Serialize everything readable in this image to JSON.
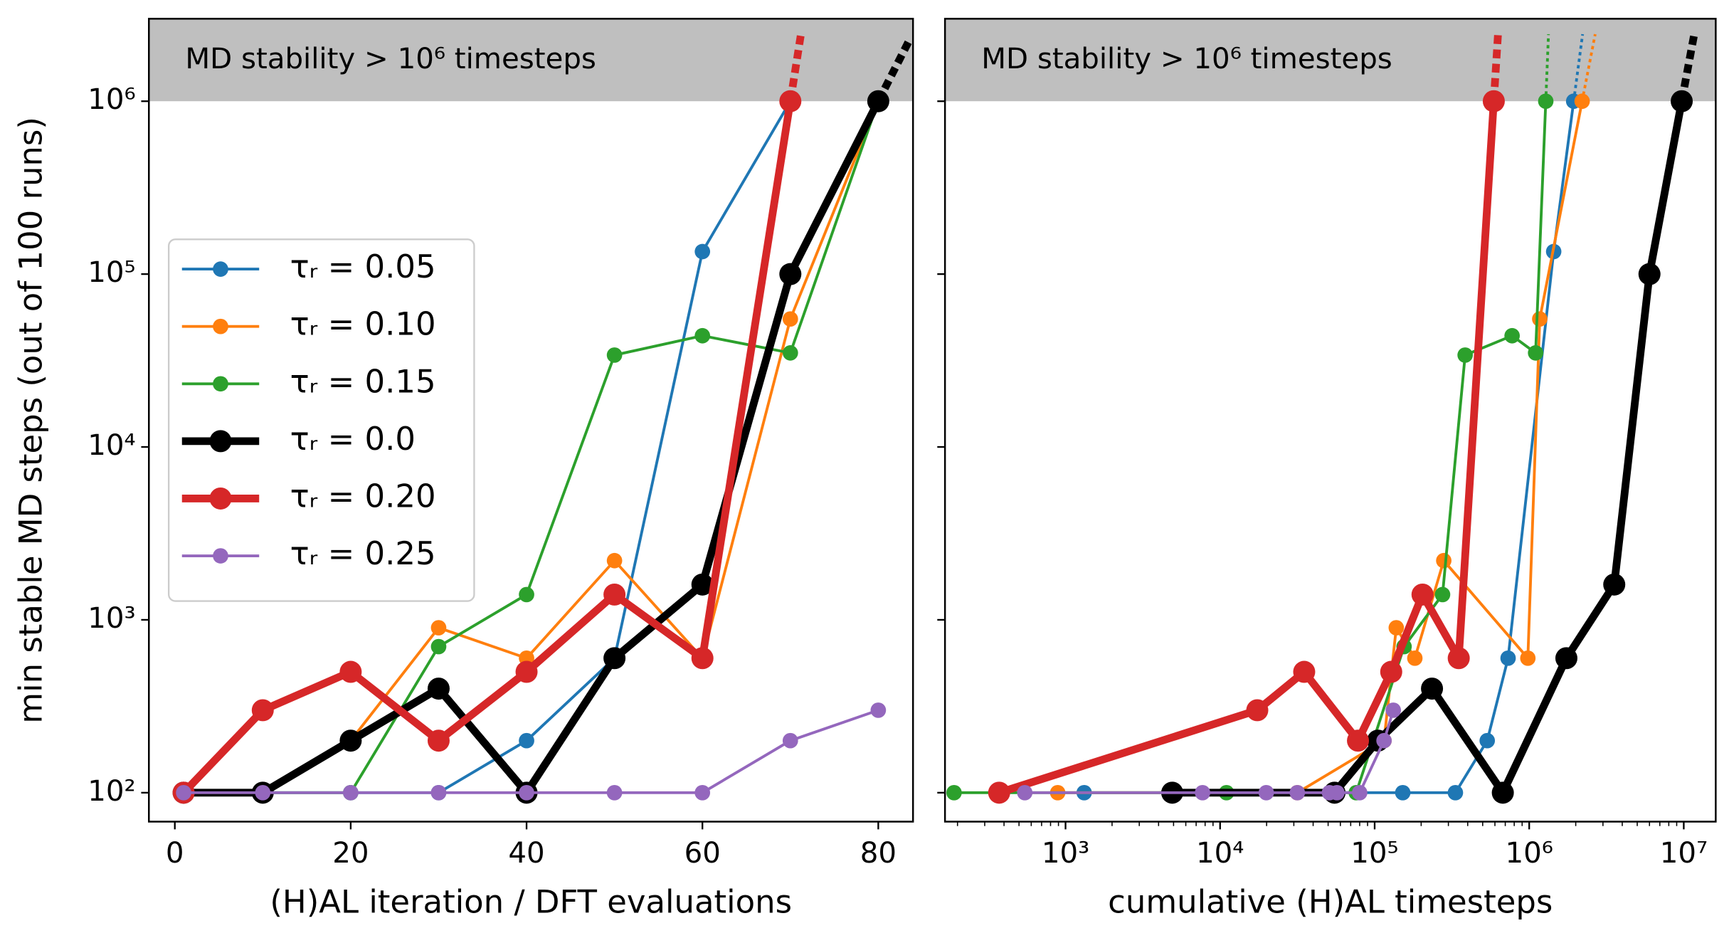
{
  "chart_data": [
    {
      "type": "line",
      "xlabel": "(H)AL iteration / DFT evaluations",
      "ylabel": "min stable MD steps (out of 100 runs)",
      "xlim": [
        -2.95,
        83.95
      ],
      "xticks": [
        0,
        20,
        40,
        60,
        80
      ],
      "ylim": [
        68,
        3000000
      ],
      "yscale": "log",
      "yticks": [
        {
          "value": 100,
          "label": "10²"
        },
        {
          "value": 1000,
          "label": "10³"
        },
        {
          "value": 10000,
          "label": "10⁴"
        },
        {
          "value": 100000,
          "label": "10⁵"
        },
        {
          "value": 1000000,
          "label": "10⁶"
        }
      ],
      "band": {
        "from": 1000000,
        "color": "#bfbfbf"
      },
      "annotation": "MD stability > 10⁶ timesteps",
      "legend": "center left",
      "series": [
        {
          "name": "τᵣ = 0.05",
          "color": "#1f77b4",
          "bold": false,
          "x": [
            1,
            10,
            20,
            30,
            40,
            50,
            60,
            70
          ],
          "values": [
            100,
            100,
            100,
            100,
            200,
            600,
            135000,
            1000000
          ]
        },
        {
          "name": "τᵣ = 0.10",
          "color": "#ff7f0e",
          "bold": false,
          "x": [
            1,
            10,
            20,
            30,
            40,
            50,
            60,
            70,
            80
          ],
          "values": [
            100,
            100,
            200,
            900,
            600,
            2200,
            600,
            55000,
            1000000
          ]
        },
        {
          "name": "τᵣ = 0.15",
          "color": "#2ca02c",
          "bold": false,
          "x": [
            1,
            10,
            20,
            30,
            40,
            50,
            60,
            70,
            80
          ],
          "values": [
            100,
            100,
            100,
            700,
            1400,
            34000,
            44000,
            35000,
            1000000
          ]
        },
        {
          "name": "τᵣ = 0.0",
          "color": "#000000",
          "bold": true,
          "dotted_continuation": true,
          "x": [
            1,
            10,
            20,
            30,
            40,
            50,
            60,
            70,
            80
          ],
          "values": [
            100,
            100,
            200,
            400,
            100,
            600,
            1600,
            100000,
            1000000
          ]
        },
        {
          "name": "τᵣ = 0.20",
          "color": "#d62728",
          "bold": true,
          "dotted_continuation": true,
          "x": [
            1,
            10,
            20,
            30,
            40,
            50,
            60,
            70
          ],
          "values": [
            100,
            300,
            500,
            200,
            500,
            1400,
            600,
            1000000
          ]
        },
        {
          "name": "τᵣ = 0.25",
          "color": "#9467bd",
          "bold": false,
          "x": [
            1,
            10,
            20,
            30,
            40,
            50,
            60,
            70,
            80
          ],
          "values": [
            100,
            100,
            100,
            100,
            100,
            100,
            100,
            200,
            300
          ]
        }
      ]
    },
    {
      "type": "line",
      "xlabel": "cumulative (H)AL timesteps",
      "xlim": [
        166,
        16100000
      ],
      "xscale": "log",
      "xticks": [
        {
          "value": 1000,
          "label": "10³"
        },
        {
          "value": 10000,
          "label": "10⁴"
        },
        {
          "value": 100000,
          "label": "10⁵"
        },
        {
          "value": 1000000,
          "label": "10⁶"
        },
        {
          "value": 10000000,
          "label": "10⁷"
        }
      ],
      "ylim": [
        68,
        3000000
      ],
      "yscale": "log",
      "yticks": [
        100,
        1000,
        10000,
        100000,
        1000000
      ],
      "ytick_labels": false,
      "band": {
        "from": 1000000,
        "color": "#bfbfbf"
      },
      "annotation": "MD stability > 10⁶ timesteps",
      "series": [
        {
          "color": "#1f77b4",
          "bold": false,
          "dotted_continuation": true,
          "x": [
            1320,
            56000,
            152000,
            333000,
            535000,
            730000,
            1440000,
            1940000
          ],
          "values": [
            100,
            100,
            100,
            100,
            200,
            600,
            135000,
            1000000
          ]
        },
        {
          "color": "#ff7f0e",
          "bold": false,
          "dotted_continuation": true,
          "x": [
            890,
            31600,
            115000,
            138000,
            182000,
            280000,
            980000,
            1170000,
            2200000
          ],
          "values": [
            100,
            100,
            200,
            900,
            600,
            2200,
            600,
            55000,
            1000000
          ]
        },
        {
          "color": "#2ca02c",
          "bold": false,
          "dotted_continuation": true,
          "x": [
            190,
            11000,
            76000,
            155000,
            275000,
            385000,
            775000,
            1100000,
            1280000
          ],
          "values": [
            100,
            100,
            100,
            700,
            1400,
            34000,
            44000,
            35000,
            1000000
          ]
        },
        {
          "color": "#000000",
          "bold": true,
          "dotted_continuation": true,
          "x": [
            4900,
            55000,
            105000,
            235000,
            675000,
            1740000,
            3550000,
            6000000,
            9700000
          ],
          "values": [
            100,
            100,
            200,
            400,
            100,
            600,
            1600,
            100000,
            1000000
          ]
        },
        {
          "color": "#d62728",
          "bold": true,
          "dotted_continuation": true,
          "x": [
            372,
            17400,
            35000,
            78000,
            128000,
            204000,
            350000,
            590000
          ],
          "values": [
            100,
            300,
            500,
            200,
            500,
            1400,
            600,
            1000000
          ]
        },
        {
          "color": "#9467bd",
          "bold": false,
          "x": [
            545,
            7700,
            19900,
            31600,
            51000,
            57000,
            80000,
            115000,
            132000
          ],
          "values": [
            100,
            100,
            100,
            100,
            100,
            100,
            100,
            200,
            300
          ]
        }
      ]
    }
  ]
}
